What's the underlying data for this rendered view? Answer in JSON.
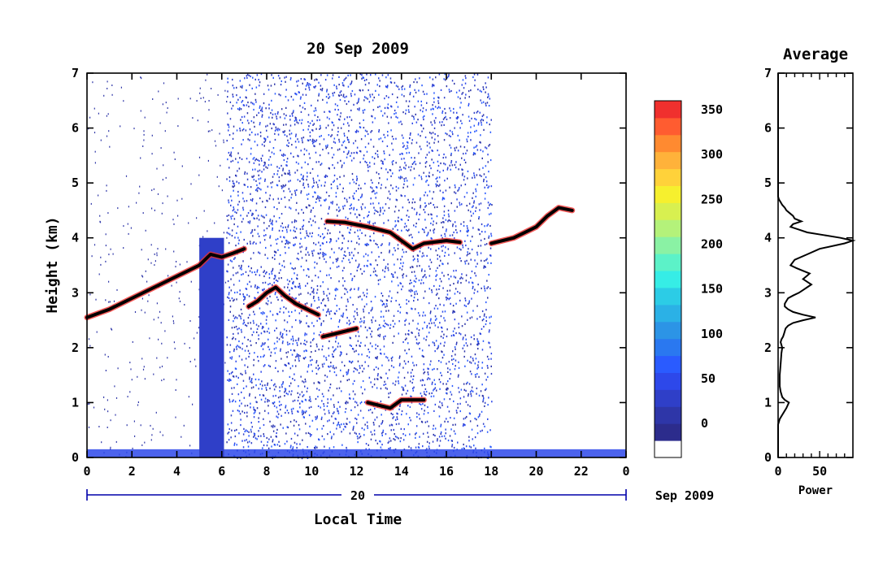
{
  "chart_data": [
    {
      "type": "heatmap",
      "title": "20 Sep 2009",
      "xlabel": "Local Time",
      "ylabel": "Height (km)",
      "x_ticks": [
        "0",
        "2",
        "4",
        "6",
        "8",
        "10",
        "12",
        "14",
        "16",
        "18",
        "20",
        "22",
        "0"
      ],
      "y_ticks": [
        "0",
        "1",
        "2",
        "3",
        "4",
        "5",
        "6",
        "7"
      ],
      "xlim": [
        0,
        24
      ],
      "ylim": [
        0,
        7
      ],
      "date_axis": {
        "day_label": "20",
        "month_label": "Sep 2009"
      },
      "colorbar": {
        "ticks": [
          "0",
          "50",
          "100",
          "150",
          "200",
          "250",
          "300",
          "350"
        ],
        "range": [
          0,
          380
        ],
        "colors": [
          "#ffffff",
          "#2c2c8c",
          "#2e36a8",
          "#2f3fc8",
          "#2d48ea",
          "#2a5bff",
          "#2a78f0",
          "#2c94e6",
          "#2bb1e6",
          "#2ccce6",
          "#36ede6",
          "#5cf2c8",
          "#8af2a4",
          "#b4f27a",
          "#d8f050",
          "#f6f02e",
          "#ffd23a",
          "#ffb23a",
          "#ff8a30",
          "#ff5c30",
          "#f0302e"
        ]
      },
      "layers": [
        {
          "name": "cloud-base-band",
          "points": [
            [
              0,
              2.55
            ],
            [
              1,
              2.7
            ],
            [
              2,
              2.9
            ],
            [
              3,
              3.1
            ],
            [
              4,
              3.3
            ],
            [
              5,
              3.5
            ],
            [
              5.5,
              3.7
            ],
            [
              6,
              3.65
            ],
            [
              6.5,
              3.72
            ],
            [
              7,
              3.8
            ]
          ],
          "value": 380
        },
        {
          "name": "upper-layer-a",
          "points": [
            [
              7.2,
              2.75
            ],
            [
              7.6,
              2.85
            ],
            [
              8,
              3.0
            ],
            [
              8.4,
              3.1
            ],
            [
              8.8,
              2.95
            ],
            [
              9.3,
              2.8
            ],
            [
              9.8,
              2.7
            ],
            [
              10.3,
              2.6
            ]
          ],
          "value": 330
        },
        {
          "name": "upper-layer-b",
          "points": [
            [
              10.5,
              2.2
            ],
            [
              11,
              2.25
            ],
            [
              11.5,
              2.3
            ],
            [
              12,
              2.35
            ]
          ],
          "value": 380
        },
        {
          "name": "upper-layer-c",
          "points": [
            [
              10.7,
              4.3
            ],
            [
              11.5,
              4.28
            ],
            [
              12.5,
              4.2
            ],
            [
              13.5,
              4.1
            ],
            [
              14.5,
              3.8
            ],
            [
              15,
              3.9
            ],
            [
              16,
              3.95
            ],
            [
              16.6,
              3.92
            ]
          ],
          "value": 380
        },
        {
          "name": "upper-layer-d",
          "points": [
            [
              18,
              3.9
            ],
            [
              19,
              4.0
            ],
            [
              20,
              4.2
            ],
            [
              20.5,
              4.4
            ],
            [
              21,
              4.55
            ],
            [
              21.6,
              4.5
            ]
          ],
          "value": 380
        },
        {
          "name": "low-cluster",
          "points": [
            [
              12.5,
              1.0
            ],
            [
              13,
              0.95
            ],
            [
              13.5,
              0.9
            ],
            [
              14,
              1.05
            ],
            [
              15,
              1.05
            ]
          ],
          "value": 330
        }
      ]
    },
    {
      "type": "line",
      "title": "Average",
      "xlabel": "Power",
      "ylabel": "",
      "x_ticks": [
        "0",
        "50"
      ],
      "y_ticks": [
        "0",
        "1",
        "2",
        "3",
        "4",
        "5",
        "6",
        "7"
      ],
      "xlim": [
        0,
        90
      ],
      "ylim": [
        0,
        7
      ],
      "x": [
        0,
        0,
        1,
        2,
        6,
        10,
        13,
        8,
        5,
        3,
        2,
        2,
        3,
        4,
        5,
        4,
        3,
        4,
        6,
        7,
        8,
        9,
        12,
        18,
        30,
        45,
        30,
        18,
        12,
        8,
        8,
        10,
        12,
        18,
        25,
        30,
        35,
        40,
        35,
        30,
        34,
        38,
        30,
        22,
        15,
        20,
        35,
        50,
        80,
        90,
        75,
        55,
        35,
        25,
        15,
        18,
        28,
        20,
        18,
        14,
        10,
        8,
        5,
        3,
        1,
        0,
        0
      ],
      "y": [
        0,
        0.6,
        0.65,
        0.7,
        0.8,
        0.9,
        1.0,
        1.05,
        1.1,
        1.2,
        1.3,
        1.5,
        1.7,
        1.9,
        2.0,
        2.05,
        2.1,
        2.15,
        2.2,
        2.25,
        2.3,
        2.35,
        2.4,
        2.45,
        2.5,
        2.55,
        2.6,
        2.65,
        2.7,
        2.75,
        2.8,
        2.85,
        2.9,
        2.95,
        3.0,
        3.05,
        3.1,
        3.15,
        3.2,
        3.25,
        3.3,
        3.35,
        3.4,
        3.45,
        3.5,
        3.6,
        3.7,
        3.8,
        3.9,
        3.95,
        4.0,
        4.05,
        4.1,
        4.15,
        4.2,
        4.25,
        4.3,
        4.35,
        4.4,
        4.45,
        4.5,
        4.55,
        4.6,
        4.65,
        4.7,
        4.75,
        7
      ]
    }
  ]
}
